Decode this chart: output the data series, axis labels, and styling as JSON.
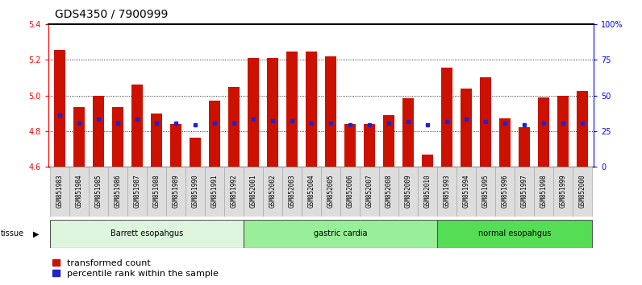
{
  "title": "GDS4350 / 7900999",
  "samples": [
    "GSM851983",
    "GSM851984",
    "GSM851985",
    "GSM851986",
    "GSM851987",
    "GSM851988",
    "GSM851989",
    "GSM851990",
    "GSM851991",
    "GSM851992",
    "GSM852001",
    "GSM852002",
    "GSM852003",
    "GSM852004",
    "GSM852005",
    "GSM852006",
    "GSM852007",
    "GSM852008",
    "GSM852009",
    "GSM852010",
    "GSM851993",
    "GSM851994",
    "GSM851995",
    "GSM851996",
    "GSM851997",
    "GSM851998",
    "GSM851999",
    "GSM852000"
  ],
  "transformed_count": [
    5.255,
    4.935,
    5.0,
    4.935,
    5.06,
    4.9,
    4.84,
    4.765,
    4.97,
    5.05,
    5.21,
    5.21,
    5.245,
    5.245,
    5.22,
    4.84,
    4.84,
    4.89,
    4.985,
    4.67,
    5.155,
    5.04,
    5.1,
    4.87,
    4.82,
    4.99,
    5.0,
    5.025
  ],
  "percentile_rank": [
    4.89,
    4.845,
    4.865,
    4.845,
    4.865,
    4.845,
    4.845,
    4.835,
    4.845,
    4.845,
    4.865,
    4.86,
    4.86,
    4.845,
    4.845,
    4.835,
    4.835,
    4.845,
    4.855,
    4.835,
    4.855,
    4.865,
    4.855,
    4.845,
    4.835,
    4.845,
    4.845,
    4.845
  ],
  "groups": [
    {
      "label": "Barrett esopahgus",
      "start": 0,
      "end": 10,
      "color": "#ddf5dd"
    },
    {
      "label": "gastric cardia",
      "start": 10,
      "end": 20,
      "color": "#99ee99"
    },
    {
      "label": "normal esopahgus",
      "start": 20,
      "end": 28,
      "color": "#55dd55"
    }
  ],
  "ylim": [
    4.6,
    5.4
  ],
  "yticks": [
    4.6,
    4.8,
    5.0,
    5.2,
    5.4
  ],
  "right_yticks": [
    0,
    25,
    50,
    75,
    100
  ],
  "right_ylabels": [
    "0",
    "25",
    "50",
    "75",
    "100%"
  ],
  "bar_color": "#cc1100",
  "percentile_color": "#2222cc",
  "background_color": "#ffffff",
  "title_fontsize": 10,
  "tick_fontsize": 7,
  "xtick_fontsize": 5.5,
  "legend_fontsize": 8
}
